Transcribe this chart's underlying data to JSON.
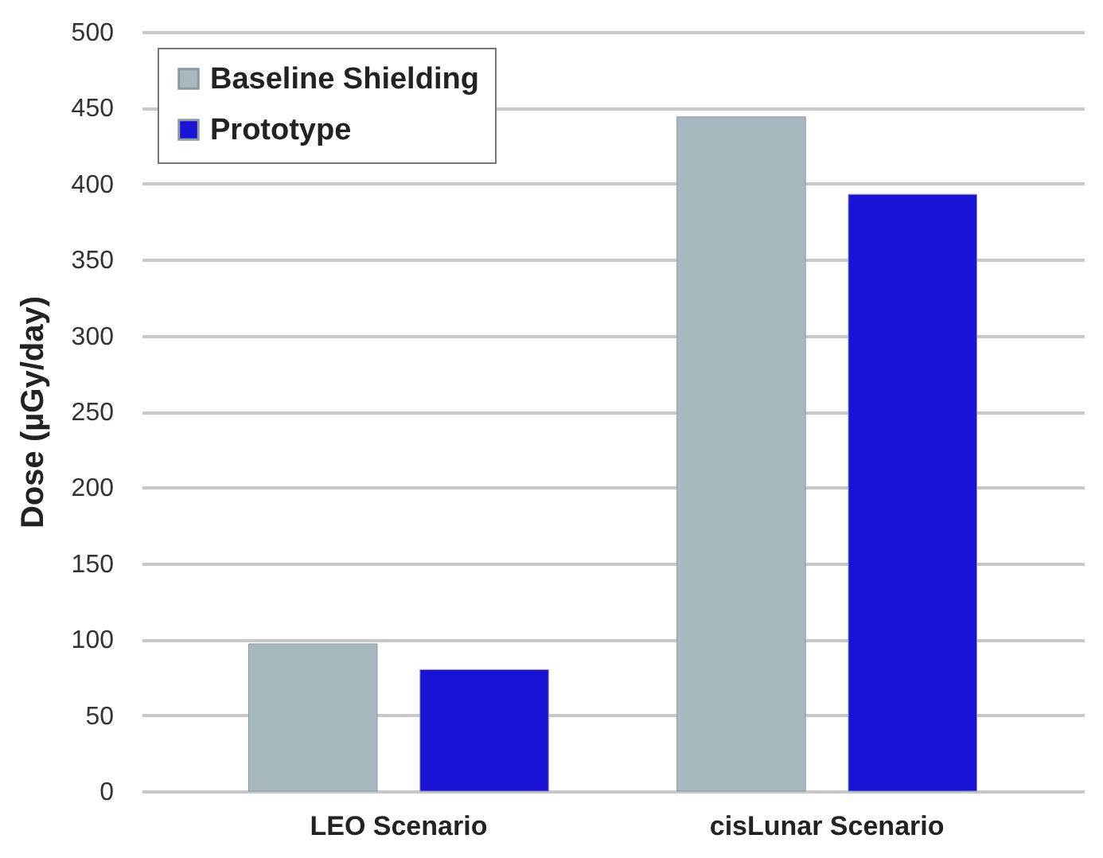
{
  "chart_data": {
    "type": "bar",
    "ylabel": "Dose (µGy/day)",
    "categories": [
      "LEO Scenario",
      "cisLunar Scenario"
    ],
    "series": [
      {
        "name": "Baseline Shielding",
        "color": "#a7b8bf",
        "values": [
          97,
          444
        ]
      },
      {
        "name": "Prototype",
        "color": "#1a12d6",
        "values": [
          80,
          393
        ]
      }
    ],
    "ylim": [
      0,
      500
    ],
    "yticks": [
      0,
      50,
      100,
      150,
      200,
      250,
      300,
      350,
      400,
      450,
      500
    ],
    "grid": "y",
    "legend": "top left"
  }
}
